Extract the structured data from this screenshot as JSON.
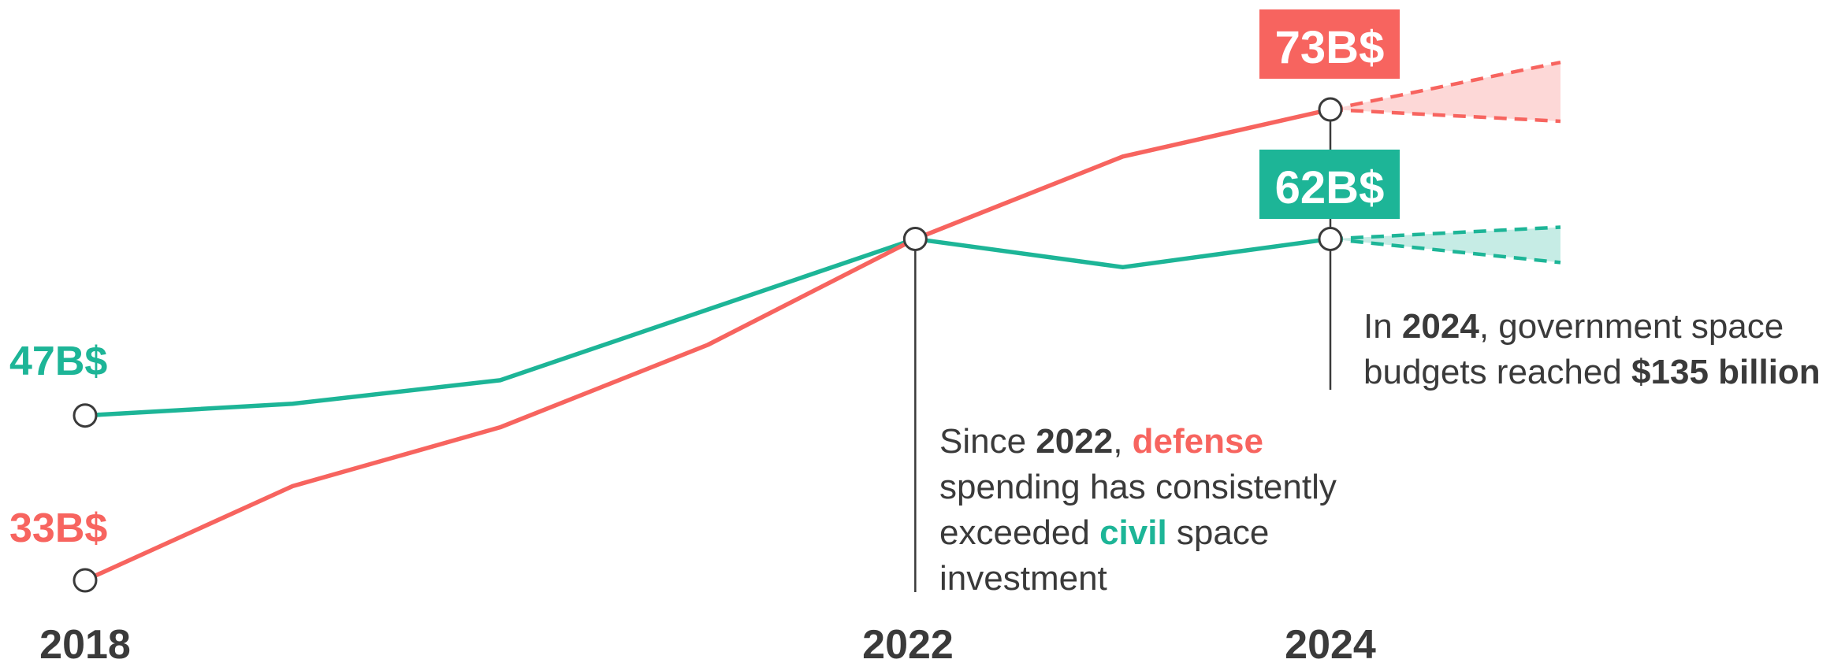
{
  "chart_data": {
    "type": "line",
    "x": [
      2018,
      2019,
      2020,
      2021,
      2022,
      2023,
      2024
    ],
    "series": [
      {
        "name": "defense",
        "values": [
          33,
          41,
          46,
          53,
          62,
          69,
          73
        ],
        "color": "#f7645f"
      },
      {
        "name": "civil",
        "values": [
          47,
          48,
          50,
          56,
          62,
          59.6,
          62
        ],
        "color": "#1db597"
      }
    ],
    "projection": {
      "defense": {
        "upper": 77,
        "lower": 72
      },
      "civil": {
        "upper": 63,
        "lower": 60
      }
    },
    "x_tick_labels": [
      "2018",
      "2022",
      "2024"
    ],
    "start_labels": {
      "defense": "33B$",
      "civil": "47B$"
    },
    "end_labels": {
      "defense": "73B$",
      "civil": "62B$"
    },
    "grid": false
  },
  "annotations": {
    "cross": {
      "p1": "Since ",
      "year": "2022",
      "p2": ", ",
      "defense_word": "defense",
      "p3": " spending has consistently exceeded ",
      "civil_word": "civil",
      "p4": " space investment"
    },
    "total": {
      "p1": "In ",
      "year": "2024",
      "p2": ", government space budgets reached ",
      "amount": "$135 billion"
    }
  },
  "colors": {
    "defense": "#f7645f",
    "civil": "#1db597",
    "text": "#3a3a3a",
    "marker_stroke": "#3a3a3a"
  }
}
